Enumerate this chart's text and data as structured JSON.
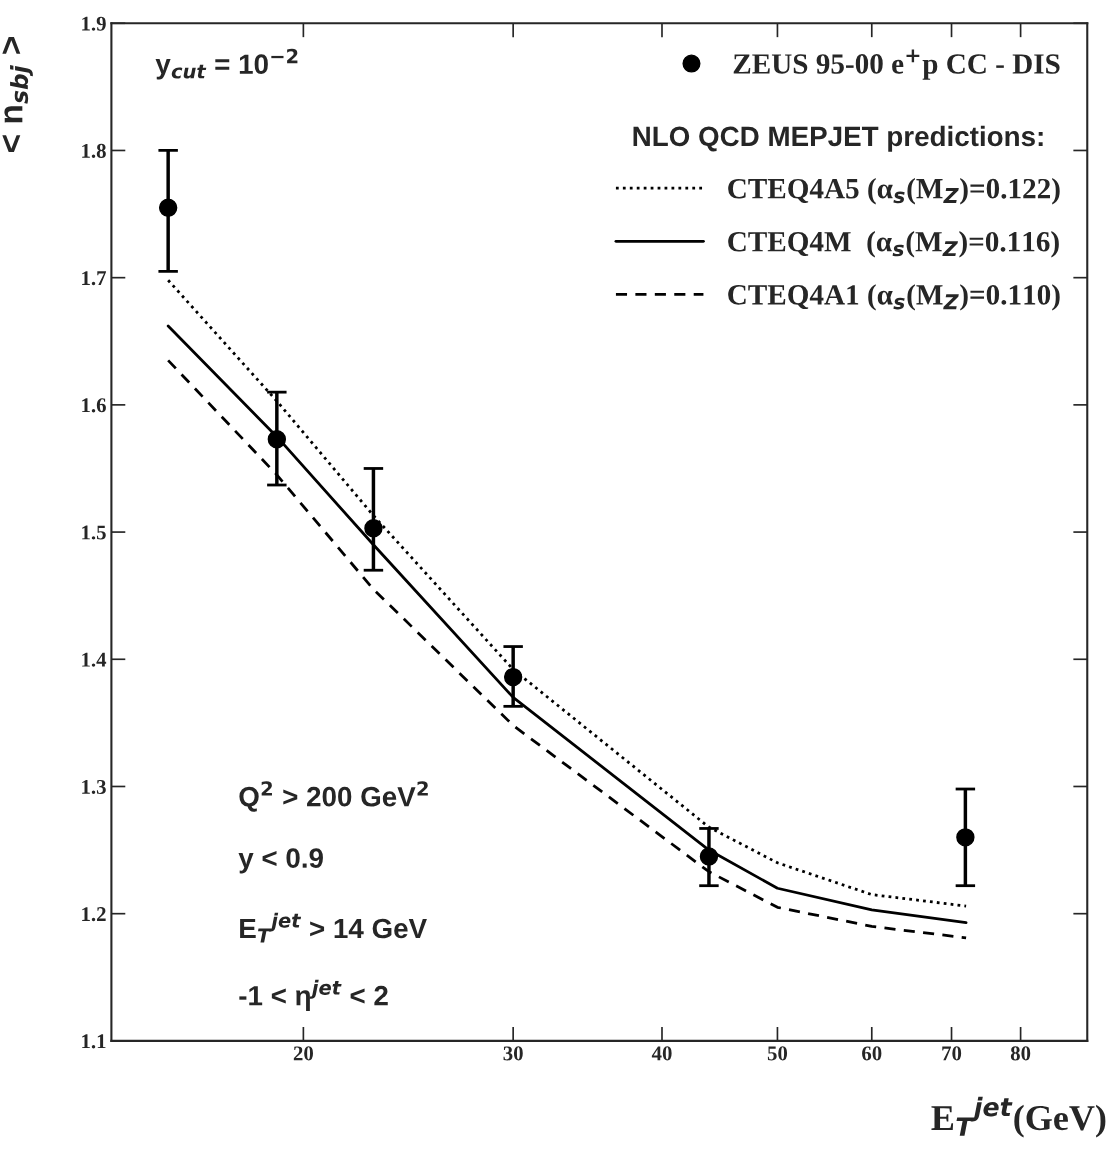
{
  "chart_data": {
    "type": "scatter",
    "xlabel": "E$_{T}$$^{jet}$(GeV)",
    "ylabel": "< n$_{sbj}$ >",
    "log": "x",
    "xlim": [
      13.8,
      91
    ],
    "xticks": [
      20,
      30,
      40,
      50,
      60,
      70,
      80
    ],
    "ylim": [
      1.1,
      1.9
    ],
    "yticks": [
      1.1,
      1.2,
      1.3,
      1.4,
      1.5,
      1.6,
      1.7,
      1.8,
      1.9
    ],
    "grid": false,
    "legend": "top right",
    "legend_title": "NLO QCD MEPJET predictions:",
    "x": [
      15.4,
      19.0,
      22.9,
      30.0,
      43.8,
      71.9
    ],
    "series": [
      {
        "name": "ZEUS 95-00 e$^{+}$p CC - DIS",
        "color": "#000000",
        "marker": "circle",
        "values": [
          1.755,
          1.573,
          1.503,
          1.386,
          1.245,
          1.26
        ],
        "errors": [
          [
            1.705,
            1.8
          ],
          [
            1.537,
            1.61
          ],
          [
            1.47,
            1.55
          ],
          [
            1.363,
            1.41
          ],
          [
            1.222,
            1.267
          ],
          [
            1.222,
            1.298
          ]
        ]
      },
      {
        "name": "CTEQ4A5 (α$_{s}$(M$_{Z}$)=0.122)",
        "type": "line",
        "color": "#000000",
        "line_style": "dotted",
        "x": [
          15.4,
          19.0,
          22.9,
          30.0,
          43.8,
          50,
          60,
          72
        ],
        "values": [
          1.698,
          1.603,
          1.513,
          1.392,
          1.268,
          1.24,
          1.215,
          1.206
        ]
      },
      {
        "name": "CTEQ4M  (α$_{s}$(M$_{Z}$)=0.116)",
        "type": "line",
        "color": "#000000",
        "line_style": "solid",
        "x": [
          15.4,
          19.0,
          22.9,
          30.0,
          43.8,
          50,
          60,
          72
        ],
        "values": [
          1.662,
          1.575,
          1.49,
          1.37,
          1.25,
          1.22,
          1.203,
          1.193
        ]
      },
      {
        "name": "CTEQ4A1 (α$_{s}$(M$_{Z}$)=0.110)",
        "type": "line",
        "color": "#000000",
        "line_style": "dashed",
        "x": [
          15.4,
          19.0,
          22.9,
          30.0,
          43.8,
          50,
          60,
          72
        ],
        "values": [
          1.635,
          1.545,
          1.455,
          1.348,
          1.233,
          1.205,
          1.19,
          1.181
        ]
      }
    ],
    "annotations": [
      "y$_{cut}$ = 10$^{−2}$",
      "Q$^{2}$ > 200 GeV$^{2}$",
      "y < 0.9",
      "E$_{T}$$^{jet}$ > 14 GeV",
      "-1 < η$^{jet}$ < 2"
    ]
  }
}
